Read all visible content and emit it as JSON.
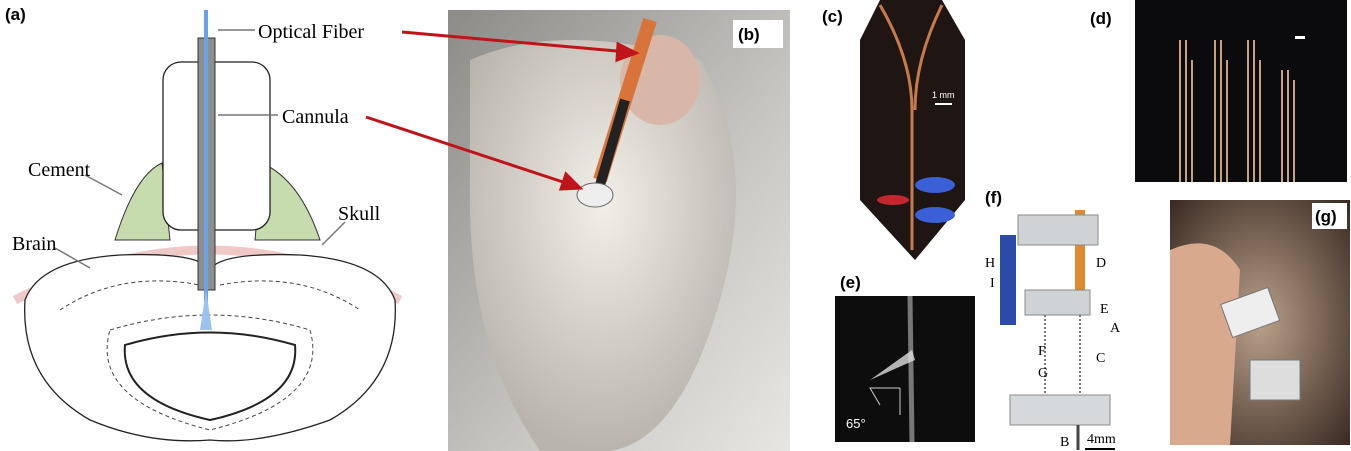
{
  "panels": {
    "a": {
      "label": "(a)",
      "callouts": {
        "optical_fiber": "Optical Fiber",
        "cannula": "Cannula",
        "cement": "Cement",
        "skull": "Skull",
        "brain": "Brain"
      }
    },
    "b": {
      "label": "(b)"
    },
    "c": {
      "label": "(c)",
      "scale": "1 mm"
    },
    "d": {
      "label": "(d)"
    },
    "e": {
      "label": "(e)",
      "angle": "65°"
    },
    "f": {
      "label": "(f)",
      "parts": [
        "H",
        "D",
        "I",
        "E",
        "A",
        "F",
        "C",
        "G",
        "B"
      ],
      "scale": "4mm"
    },
    "g": {
      "label": "(g)"
    }
  }
}
